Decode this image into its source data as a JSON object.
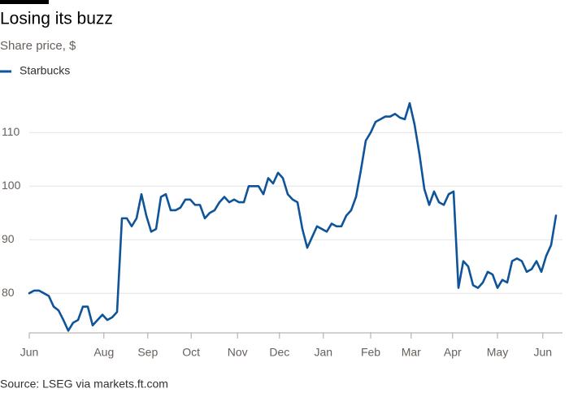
{
  "chart_data": {
    "type": "line",
    "title": "Losing its buzz",
    "subtitle": "Share price, $",
    "source": "Source: LSEG via markets.ft.com",
    "series": [
      {
        "name": "Starbucks",
        "color": "#0f5499",
        "values": [
          80,
          80.5,
          80.5,
          80,
          79.5,
          77.5,
          76.8,
          75,
          73,
          74.5,
          75,
          77.5,
          77.5,
          74,
          75,
          76,
          75,
          75.5,
          76.5,
          94,
          94,
          92.5,
          94,
          98.5,
          94.5,
          91.5,
          92,
          98,
          98.5,
          95.5,
          95.5,
          96,
          97.5,
          97.5,
          96.5,
          96.5,
          94,
          95,
          95.5,
          97,
          98,
          97,
          97.5,
          97,
          97,
          100,
          100,
          100,
          98.5,
          101.5,
          100.5,
          102.5,
          101.5,
          98.5,
          97.5,
          97,
          92,
          88.5,
          90.5,
          92.5,
          92,
          91.5,
          93,
          92.5,
          92.5,
          94.5,
          95.5,
          98,
          103,
          108.5,
          110,
          112,
          112.5,
          113,
          113,
          113.5,
          112.8,
          112.5,
          115.5,
          111.5,
          106,
          99.5,
          96.5,
          99,
          97,
          96.5,
          98.5,
          99,
          81,
          86,
          85,
          81.5,
          81,
          82,
          84,
          83.5,
          81,
          82.5,
          82,
          86,
          86.5,
          86,
          84,
          84.5,
          86,
          84,
          87,
          89,
          94.5
        ]
      }
    ],
    "xlim": [
      0,
      108
    ],
    "xticks": [
      {
        "value": 0,
        "label": "Jun"
      },
      {
        "value": 15.3,
        "label": "Aug"
      },
      {
        "value": 24.3,
        "label": "Sep"
      },
      {
        "value": 33.2,
        "label": "Oct"
      },
      {
        "value": 42.7,
        "label": "Nov"
      },
      {
        "value": 51.3,
        "label": "Dec"
      },
      {
        "value": 60.3,
        "label": "Jan"
      },
      {
        "value": 70,
        "label": "Feb"
      },
      {
        "value": 78.3,
        "label": "Mar"
      },
      {
        "value": 86.8,
        "label": "Apr"
      },
      {
        "value": 96,
        "label": "May"
      },
      {
        "value": 105.3,
        "label": "Jun"
      }
    ],
    "ylim": [
      72.6,
      119
    ],
    "yticks": [
      80,
      90,
      100,
      110
    ],
    "grid": true
  }
}
